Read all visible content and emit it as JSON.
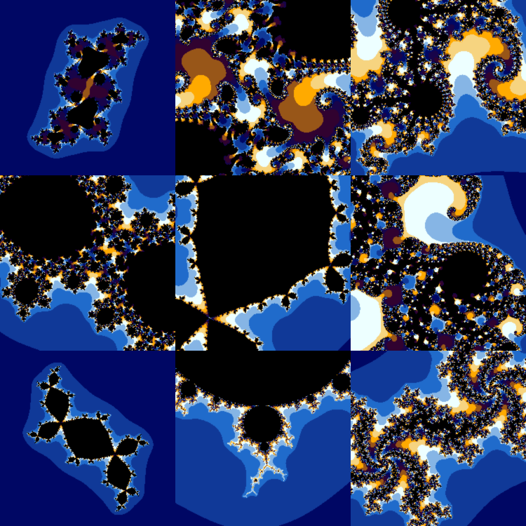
{
  "gallery": {
    "palette": [
      "#000764",
      "#206bcb",
      "#edffff",
      "#ffaa00",
      "#310230"
    ],
    "tiles": [
      {
        "kind": "julia",
        "c": [
          -0.1,
          0.651
        ],
        "center": [
          0.0,
          0.0
        ],
        "scale": 1.55,
        "rotate": 0.35
      },
      {
        "kind": "julia",
        "c": [
          -0.745,
          0.113
        ],
        "center": [
          0.05,
          0.02
        ],
        "scale": 0.42,
        "rotate": 0.6
      },
      {
        "kind": "julia",
        "c": [
          -0.8,
          0.156
        ],
        "center": [
          0.2,
          0.15
        ],
        "scale": 0.55,
        "rotate": -0.3
      },
      {
        "kind": "julia",
        "c": [
          -0.39,
          -0.59
        ],
        "center": [
          -0.15,
          0.05
        ],
        "scale": 0.55,
        "rotate": 0.2
      },
      {
        "kind": "julia",
        "c": [
          -0.12,
          0.75
        ],
        "center": [
          0.0,
          0.2
        ],
        "scale": 0.45,
        "rotate": 0.0
      },
      {
        "kind": "julia",
        "c": [
          0.285,
          0.013
        ],
        "center": [
          0.3,
          0.1
        ],
        "scale": 0.6,
        "rotate": 0.4
      },
      {
        "kind": "julia",
        "c": [
          -0.123,
          0.745
        ],
        "center": [
          0.0,
          0.0
        ],
        "scale": 1.55,
        "rotate": 1.57
      },
      {
        "kind": "mandelbrot",
        "c": [
          0,
          0
        ],
        "center": [
          -0.12,
          0.82
        ],
        "scale": 0.45,
        "rotate": 0.0
      },
      {
        "kind": "julia",
        "c": [
          -0.54,
          0.54
        ],
        "center": [
          0.0,
          0.1
        ],
        "scale": 0.7,
        "rotate": 0.0
      }
    ]
  }
}
